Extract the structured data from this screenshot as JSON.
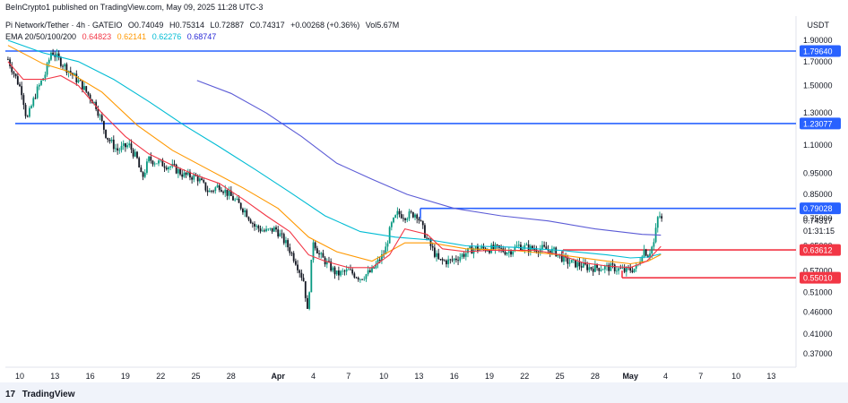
{
  "header": {
    "published": "BeInCrypto1 published on TradingView.com, May 09, 2025 11:28 UTC-3",
    "symbol": "Pi Network/Tether · 4h · GATEIO",
    "o_label": "O",
    "o": "0.74049",
    "h_label": "H",
    "h": "0.75314",
    "l_label": "L",
    "l": "0.72887",
    "c_label": "C",
    "c": "0.74317",
    "change": "+0.00268 (+0.36%)",
    "vol_label": "Vol",
    "vol": "5.67M",
    "ema_label": "EMA 20/50/100/200",
    "ema20": "0.64823",
    "ema50": "0.62141",
    "ema100": "0.62276",
    "ema200": "0.68747"
  },
  "footer": {
    "brand": "TradingView",
    "logo": "tradingview-logo"
  },
  "chart_data": {
    "type": "candlestick",
    "currency": "USDT",
    "y_scale": "log",
    "y_ticks": [
      "1.90000",
      "1.70000",
      "1.50000",
      "1.30000",
      "1.10000",
      "0.95000",
      "0.85000",
      "0.75000",
      "0.65000",
      "0.57000",
      "0.51000",
      "0.46000",
      "0.41000",
      "0.37000"
    ],
    "x_ticks": [
      "10",
      "13",
      "16",
      "19",
      "22",
      "25",
      "28",
      "Apr",
      "4",
      "7",
      "10",
      "13",
      "16",
      "19",
      "22",
      "25",
      "28",
      "May",
      "4",
      "7",
      "10",
      "13"
    ],
    "price_labels": [
      {
        "text": "1.79640",
        "value": 1.7964,
        "color": "#2962ff"
      },
      {
        "text": "1.23077",
        "value": 1.23077,
        "color": "#2962ff"
      },
      {
        "text": "0.79028",
        "value": 0.79028,
        "color": "#2962ff"
      },
      {
        "text": "0.63612",
        "value": 0.63612,
        "color": "#f23645"
      },
      {
        "text": "0.55010",
        "value": 0.5501,
        "color": "#f23645"
      }
    ],
    "last_price": "0.74317",
    "countdown": "01:31:15",
    "colors": {
      "up": "#089981",
      "down": "#131722",
      "ema20": "#f23645",
      "ema50": "#ff9800",
      "ema100": "#00bcd4",
      "ema200": "#5b5bd6",
      "support": "#f23645",
      "resistance": "#2962ff"
    },
    "close_path": [
      [
        9.0,
        1.72
      ],
      [
        10.2,
        1.45
      ],
      [
        10.6,
        1.25
      ],
      [
        11.4,
        1.45
      ],
      [
        12.2,
        1.6
      ],
      [
        12.7,
        1.8
      ],
      [
        13.3,
        1.72
      ],
      [
        14.2,
        1.62
      ],
      [
        15.3,
        1.5
      ],
      [
        16.5,
        1.35
      ],
      [
        17.4,
        1.15
      ],
      [
        18.3,
        1.07
      ],
      [
        19.3,
        1.1
      ],
      [
        20.0,
        1.02
      ],
      [
        20.4,
        0.92
      ],
      [
        21.0,
        1.02
      ],
      [
        22.0,
        1.0
      ],
      [
        23.0,
        0.98
      ],
      [
        24.0,
        0.94
      ],
      [
        25.1,
        0.93
      ],
      [
        26.1,
        0.86
      ],
      [
        27.0,
        0.89
      ],
      [
        28.0,
        0.84
      ],
      [
        29.2,
        0.78
      ],
      [
        30.0,
        0.72
      ],
      [
        30.9,
        0.7
      ],
      [
        31.8,
        0.71
      ],
      [
        32.8,
        0.65
      ],
      [
        33.5,
        0.6
      ],
      [
        34.2,
        0.54
      ],
      [
        34.5,
        0.46
      ],
      [
        35.0,
        0.67
      ],
      [
        35.5,
        0.62
      ],
      [
        36.0,
        0.6
      ],
      [
        37.0,
        0.56
      ],
      [
        38.0,
        0.57
      ],
      [
        39.0,
        0.55
      ],
      [
        40.0,
        0.57
      ],
      [
        41.1,
        0.63
      ],
      [
        41.6,
        0.72
      ],
      [
        42.2,
        0.77
      ],
      [
        42.8,
        0.76
      ],
      [
        43.8,
        0.77
      ],
      [
        44.7,
        0.67
      ],
      [
        45.7,
        0.6
      ],
      [
        46.7,
        0.6
      ],
      [
        47.7,
        0.62
      ],
      [
        48.6,
        0.64
      ],
      [
        49.6,
        0.64
      ],
      [
        50.6,
        0.64
      ],
      [
        51.6,
        0.63
      ],
      [
        52.5,
        0.65
      ],
      [
        53.5,
        0.64
      ],
      [
        54.5,
        0.64
      ],
      [
        55.6,
        0.63
      ],
      [
        56.5,
        0.6
      ],
      [
        57.5,
        0.59
      ],
      [
        58.5,
        0.58
      ],
      [
        59.5,
        0.58
      ],
      [
        60.5,
        0.58
      ],
      [
        61.5,
        0.57
      ],
      [
        62.6,
        0.58
      ],
      [
        63.1,
        0.64
      ],
      [
        63.5,
        0.62
      ],
      [
        64.0,
        0.66
      ],
      [
        64.4,
        0.77
      ],
      [
        64.7,
        0.74
      ]
    ],
    "ema20_path": [
      [
        9.0,
        1.7
      ],
      [
        10.3,
        1.55
      ],
      [
        12.1,
        1.55
      ],
      [
        13.5,
        1.58
      ],
      [
        15.0,
        1.5
      ],
      [
        17.0,
        1.3
      ],
      [
        19.0,
        1.15
      ],
      [
        21.0,
        1.05
      ],
      [
        23.0,
        0.99
      ],
      [
        25.0,
        0.94
      ],
      [
        27.0,
        0.9
      ],
      [
        29.0,
        0.83
      ],
      [
        31.0,
        0.76
      ],
      [
        33.0,
        0.7
      ],
      [
        34.6,
        0.62
      ],
      [
        36.0,
        0.6
      ],
      [
        38.0,
        0.58
      ],
      [
        40.0,
        0.58
      ],
      [
        41.5,
        0.62
      ],
      [
        42.8,
        0.71
      ],
      [
        44.7,
        0.69
      ],
      [
        46.0,
        0.64
      ],
      [
        48.0,
        0.63
      ],
      [
        50.0,
        0.635
      ],
      [
        52.0,
        0.635
      ],
      [
        54.0,
        0.635
      ],
      [
        56.0,
        0.62
      ],
      [
        58.0,
        0.595
      ],
      [
        60.0,
        0.585
      ],
      [
        62.0,
        0.58
      ],
      [
        63.4,
        0.6
      ],
      [
        64.6,
        0.648
      ]
    ],
    "ema50_path": [
      [
        9.0,
        1.85
      ],
      [
        12.0,
        1.68
      ],
      [
        14.0,
        1.62
      ],
      [
        17.0,
        1.45
      ],
      [
        20.0,
        1.22
      ],
      [
        23.0,
        1.07
      ],
      [
        26.0,
        0.97
      ],
      [
        29.0,
        0.88
      ],
      [
        32.0,
        0.79
      ],
      [
        34.6,
        0.68
      ],
      [
        37.0,
        0.63
      ],
      [
        40.0,
        0.6
      ],
      [
        42.8,
        0.66
      ],
      [
        45.0,
        0.66
      ],
      [
        48.0,
        0.64
      ],
      [
        52.0,
        0.635
      ],
      [
        56.0,
        0.62
      ],
      [
        60.0,
        0.6
      ],
      [
        62.0,
        0.592
      ],
      [
        63.5,
        0.6
      ],
      [
        64.6,
        0.621
      ]
    ],
    "ema100_path": [
      [
        9.0,
        1.9
      ],
      [
        12.0,
        1.78
      ],
      [
        15.0,
        1.7
      ],
      [
        18.0,
        1.55
      ],
      [
        21.0,
        1.38
      ],
      [
        24.0,
        1.22
      ],
      [
        27.0,
        1.09
      ],
      [
        30.0,
        0.97
      ],
      [
        33.0,
        0.86
      ],
      [
        36.0,
        0.76
      ],
      [
        39.0,
        0.7
      ],
      [
        42.0,
        0.68
      ],
      [
        45.0,
        0.67
      ],
      [
        48.0,
        0.65
      ],
      [
        52.0,
        0.645
      ],
      [
        56.0,
        0.635
      ],
      [
        60.0,
        0.62
      ],
      [
        62.0,
        0.61
      ],
      [
        63.5,
        0.613
      ],
      [
        64.6,
        0.623
      ]
    ],
    "ema200_path": [
      [
        25.1,
        1.54
      ],
      [
        28.0,
        1.44
      ],
      [
        31.0,
        1.3
      ],
      [
        34.0,
        1.15
      ],
      [
        37.0,
        1.0
      ],
      [
        40.0,
        0.92
      ],
      [
        43.0,
        0.85
      ],
      [
        47.0,
        0.79
      ],
      [
        51.0,
        0.76
      ],
      [
        55.0,
        0.74
      ],
      [
        59.0,
        0.71
      ],
      [
        63.0,
        0.69
      ],
      [
        64.6,
        0.687
      ]
    ]
  }
}
